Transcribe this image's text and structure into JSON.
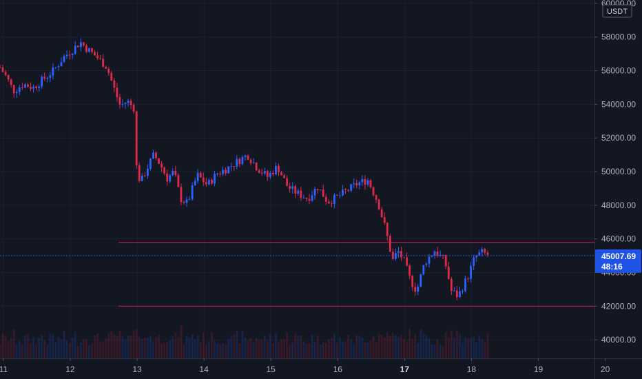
{
  "chart_data": {
    "type": "candlestick",
    "currency_label": "USDT",
    "y_ticks": [
      "40000.00",
      "42000.00",
      "44000.00",
      "46000.00",
      "48000.00",
      "50000.00",
      "52000.00",
      "54000.00",
      "56000.00",
      "58000.00",
      "60000.00"
    ],
    "y_tick_values": [
      40000,
      42000,
      44000,
      46000,
      48000,
      50000,
      52000,
      54000,
      56000,
      58000,
      60000
    ],
    "ylim": [
      38900,
      60200
    ],
    "x_ticks": [
      {
        "label": "11",
        "day": 11,
        "bold": false
      },
      {
        "label": "12",
        "day": 12,
        "bold": false
      },
      {
        "label": "13",
        "day": 13,
        "bold": false
      },
      {
        "label": "14",
        "day": 14,
        "bold": false
      },
      {
        "label": "15",
        "day": 15,
        "bold": false
      },
      {
        "label": "16",
        "day": 16,
        "bold": false
      },
      {
        "label": "17",
        "day": 17,
        "bold": true
      },
      {
        "label": "18",
        "day": 18,
        "bold": false
      },
      {
        "label": "19",
        "day": 19,
        "bold": false
      },
      {
        "label": "20",
        "day": 20,
        "bold": false
      }
    ],
    "xlim": [
      10.95,
      20.55
    ],
    "horizontal_lines": [
      {
        "value": 45800,
        "start_day": 12.72,
        "end_day": 19.95,
        "color": "#c2185b"
      },
      {
        "value": 42000,
        "start_day": 12.72,
        "end_day": 19.95,
        "color": "#c2185b"
      }
    ],
    "current_price": {
      "price": "45007.69",
      "countdown": "48:16",
      "value": 45007.69,
      "color": "#1e53e5"
    },
    "price_path": [
      [
        10.95,
        56200
      ],
      [
        11.05,
        55600
      ],
      [
        11.15,
        54800
      ],
      [
        11.3,
        55200
      ],
      [
        11.45,
        55000
      ],
      [
        11.6,
        55500
      ],
      [
        11.75,
        56000
      ],
      [
        11.9,
        56800
      ],
      [
        12.05,
        57300
      ],
      [
        12.15,
        57700
      ],
      [
        12.25,
        57300
      ],
      [
        12.4,
        56800
      ],
      [
        12.55,
        56200
      ],
      [
        12.65,
        55000
      ],
      [
        12.75,
        53900
      ],
      [
        12.85,
        54200
      ],
      [
        12.95,
        53800
      ],
      [
        12.98,
        50500
      ],
      [
        13.05,
        49300
      ],
      [
        13.15,
        50200
      ],
      [
        13.25,
        51000
      ],
      [
        13.35,
        50400
      ],
      [
        13.45,
        49600
      ],
      [
        13.55,
        50000
      ],
      [
        13.65,
        48400
      ],
      [
        13.75,
        48100
      ],
      [
        13.9,
        49800
      ],
      [
        14.05,
        49200
      ],
      [
        14.2,
        49900
      ],
      [
        14.35,
        50200
      ],
      [
        14.5,
        50600
      ],
      [
        14.65,
        51000
      ],
      [
        14.8,
        50200
      ],
      [
        14.95,
        49700
      ],
      [
        15.1,
        50300
      ],
      [
        15.25,
        49100
      ],
      [
        15.4,
        48700
      ],
      [
        15.55,
        48400
      ],
      [
        15.7,
        49100
      ],
      [
        15.85,
        48200
      ],
      [
        16.0,
        48500
      ],
      [
        16.15,
        48900
      ],
      [
        16.3,
        49300
      ],
      [
        16.45,
        49500
      ],
      [
        16.6,
        48200
      ],
      [
        16.72,
        46500
      ],
      [
        16.82,
        44700
      ],
      [
        16.9,
        45300
      ],
      [
        17.0,
        44600
      ],
      [
        17.08,
        43600
      ],
      [
        17.18,
        42900
      ],
      [
        17.3,
        44600
      ],
      [
        17.45,
        45300
      ],
      [
        17.6,
        44700
      ],
      [
        17.7,
        42900
      ],
      [
        17.8,
        42600
      ],
      [
        17.95,
        43800
      ],
      [
        18.05,
        44900
      ],
      [
        18.15,
        45200
      ],
      [
        18.28,
        45007
      ]
    ],
    "volume_bars": {
      "base_value": 39200,
      "max_height_value": 1500
    }
  }
}
